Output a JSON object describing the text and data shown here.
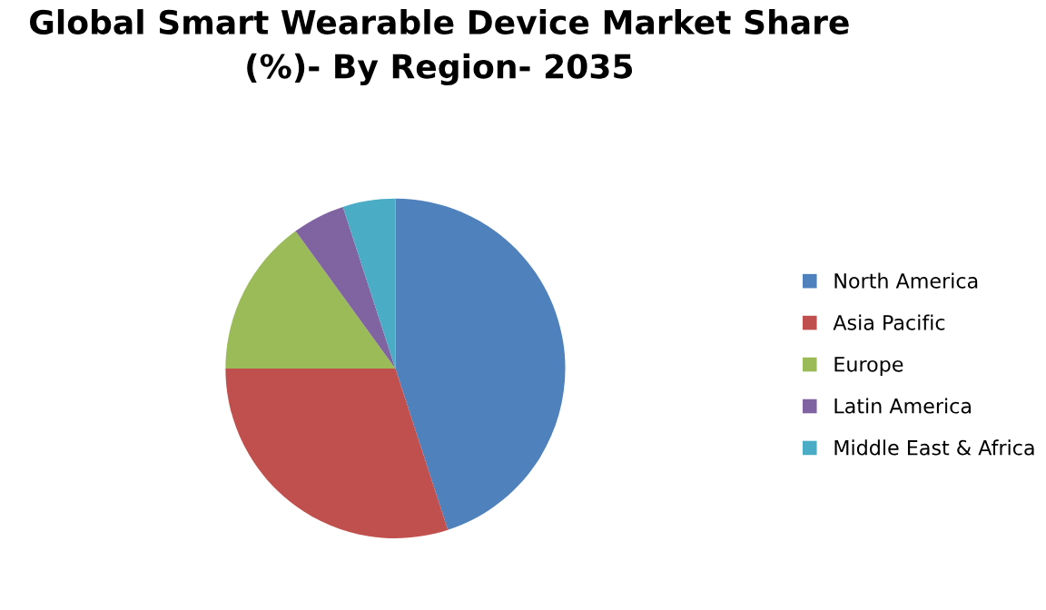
{
  "chart_data": {
    "type": "pie",
    "title": "Global Smart Wearable Device Market Share\n(%)- By Region- 2035",
    "categories": [
      "North America",
      "Asia Pacific",
      "Europe",
      "Latin America",
      "Middle East & Africa"
    ],
    "values": [
      45,
      30,
      15,
      5,
      5
    ],
    "colors": [
      "#4f81bd",
      "#c0504d",
      "#9bbb59",
      "#8064a2",
      "#4bacc6"
    ],
    "legend": "right"
  }
}
